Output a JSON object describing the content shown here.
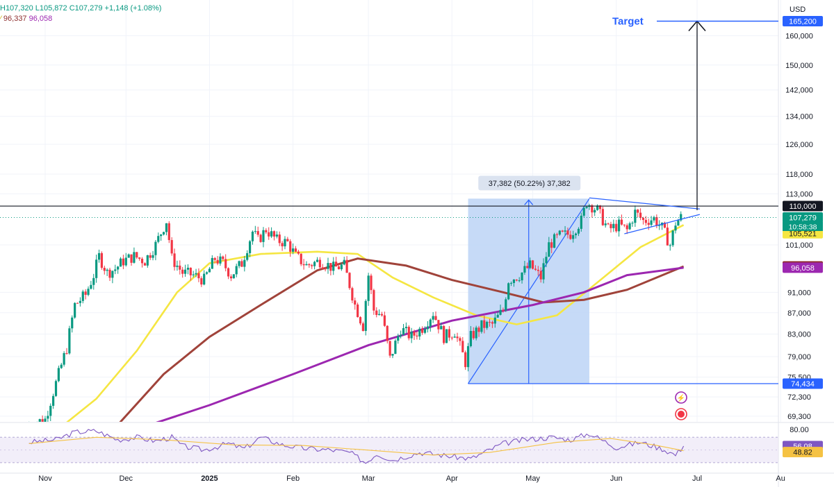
{
  "legend": {
    "ohlc_high": "H107,320",
    "ohlc_low": "L105,872",
    "ohlc_close": "C107,279",
    "ohlc_change": "+1,148 (+1.08%)",
    "ma_row_a": "96,337",
    "ma_row_b": "96,058"
  },
  "currency_label": "USD",
  "colors": {
    "bull": "#089981",
    "bear": "#f23645",
    "sma50": "#f5e642",
    "sma200": "#9c27b0",
    "ema": "#a0433a",
    "measure_fill": "#bcd4f6",
    "trendline": "#2962ff",
    "rsi_line": "#7e57c2",
    "rsi_ma": "#f5c243",
    "rsi_band": "#ede7f6"
  },
  "annotations": {
    "target_label": "Target",
    "measure_label": "37,382 (50.22%) 37,382"
  },
  "price_labels": [
    {
      "value": 165200,
      "text": "165,200",
      "bg": "#2962ff",
      "fg": "#ffffff"
    },
    {
      "value": 110000,
      "text": "110,000",
      "bg": "#131722",
      "fg": "#ffffff"
    },
    {
      "value": 107279,
      "text": "107,279",
      "bg": "#089981",
      "fg": "#ffffff"
    },
    {
      "value": 105521,
      "text": "105,521",
      "bg": "#f5e642",
      "fg": "#131722"
    },
    {
      "value": 96337,
      "text": "96,337",
      "bg": "#8d2d2d",
      "fg": "#ffffff"
    },
    {
      "value": 96058,
      "text": "96,058",
      "bg": "#9c27b0",
      "fg": "#ffffff"
    },
    {
      "value": 74434,
      "text": "74,434",
      "bg": "#2962ff",
      "fg": "#ffffff"
    }
  ],
  "countdown": "10:58:38",
  "rsi_labels": [
    {
      "text": "56.08",
      "bg": "#7e57c2",
      "fg": "#ffffff"
    },
    {
      "text": "48.82",
      "bg": "#f5c243",
      "fg": "#131722"
    }
  ],
  "chart_data": {
    "type": "candlestick",
    "title": "",
    "currency": "USD",
    "y_axis": {
      "scale": "log",
      "range": [
        68000,
        168000
      ],
      "ticks": [
        160000,
        150000,
        142000,
        134000,
        126000,
        118000,
        113000,
        101000,
        91000,
        87000,
        83000,
        79000,
        75500,
        72300,
        69300
      ],
      "tick_labels": [
        "160,000",
        "150,000",
        "142,000",
        "134,000",
        "126,000",
        "118,000",
        "113,000",
        "101,000",
        "91,000",
        "87,000",
        "83,000",
        "79,000",
        "75,500",
        "72,300",
        "69,300"
      ]
    },
    "x_axis": {
      "labels": [
        "Nov",
        "Dec",
        "2025",
        "Feb",
        "Mar",
        "Apr",
        "May",
        "Jun",
        "Jul",
        "Au"
      ],
      "dates": [
        "2024-11-01",
        "2024-12-01",
        "2025-01-01",
        "2025-02-01",
        "2025-03-01",
        "2025-04-01",
        "2025-05-01",
        "2025-06-01",
        "2025-07-01",
        "2025-08-01"
      ]
    },
    "last_candle": {
      "high": 107320,
      "low": 105872,
      "close": 107279,
      "change": 1148,
      "change_pct": 1.08
    },
    "close_series": [
      {
        "d": "2024-10-26",
        "c": 67900
      },
      {
        "d": "2024-11-02",
        "c": 68800
      },
      {
        "d": "2024-11-06",
        "c": 74500
      },
      {
        "d": "2024-11-10",
        "c": 80500
      },
      {
        "d": "2024-11-13",
        "c": 88500
      },
      {
        "d": "2024-11-17",
        "c": 90500
      },
      {
        "d": "2024-11-20",
        "c": 94500
      },
      {
        "d": "2024-11-22",
        "c": 98500
      },
      {
        "d": "2024-11-25",
        "c": 95000
      },
      {
        "d": "2024-11-28",
        "c": 95800
      },
      {
        "d": "2024-12-01",
        "c": 97500
      },
      {
        "d": "2024-12-05",
        "c": 98500
      },
      {
        "d": "2024-12-09",
        "c": 97500
      },
      {
        "d": "2024-12-13",
        "c": 101000
      },
      {
        "d": "2024-12-17",
        "c": 106500
      },
      {
        "d": "2024-12-19",
        "c": 98000
      },
      {
        "d": "2024-12-23",
        "c": 95000
      },
      {
        "d": "2024-12-27",
        "c": 94500
      },
      {
        "d": "2024-12-31",
        "c": 93500
      },
      {
        "d": "2025-01-04",
        "c": 98000
      },
      {
        "d": "2025-01-07",
        "c": 97000
      },
      {
        "d": "2025-01-10",
        "c": 94500
      },
      {
        "d": "2025-01-14",
        "c": 97000
      },
      {
        "d": "2025-01-18",
        "c": 104000
      },
      {
        "d": "2025-01-20",
        "c": 102000
      },
      {
        "d": "2025-01-23",
        "c": 104500
      },
      {
        "d": "2025-01-27",
        "c": 102000
      },
      {
        "d": "2025-01-31",
        "c": 101500
      },
      {
        "d": "2025-02-03",
        "c": 98500
      },
      {
        "d": "2025-02-07",
        "c": 96500
      },
      {
        "d": "2025-02-12",
        "c": 97500
      },
      {
        "d": "2025-02-17",
        "c": 96000
      },
      {
        "d": "2025-02-21",
        "c": 96500
      },
      {
        "d": "2025-02-25",
        "c": 88500
      },
      {
        "d": "2025-02-28",
        "c": 84500
      },
      {
        "d": "2025-03-02",
        "c": 94500
      },
      {
        "d": "2025-03-04",
        "c": 87500
      },
      {
        "d": "2025-03-07",
        "c": 86500
      },
      {
        "d": "2025-03-10",
        "c": 78600
      },
      {
        "d": "2025-03-14",
        "c": 84000
      },
      {
        "d": "2025-03-18",
        "c": 82500
      },
      {
        "d": "2025-03-22",
        "c": 84200
      },
      {
        "d": "2025-03-26",
        "c": 87000
      },
      {
        "d": "2025-03-30",
        "c": 82500
      },
      {
        "d": "2025-04-03",
        "c": 83500
      },
      {
        "d": "2025-04-07",
        "c": 78000
      },
      {
        "d": "2025-04-09",
        "c": 82500
      },
      {
        "d": "2025-04-13",
        "c": 84500
      },
      {
        "d": "2025-04-17",
        "c": 84800
      },
      {
        "d": "2025-04-21",
        "c": 87500
      },
      {
        "d": "2025-04-23",
        "c": 93500
      },
      {
        "d": "2025-04-27",
        "c": 94500
      },
      {
        "d": "2025-05-01",
        "c": 96500
      },
      {
        "d": "2025-05-05",
        "c": 94000
      },
      {
        "d": "2025-05-08",
        "c": 101000
      },
      {
        "d": "2025-05-12",
        "c": 103000
      },
      {
        "d": "2025-05-16",
        "c": 103500
      },
      {
        "d": "2025-05-20",
        "c": 106500
      },
      {
        "d": "2025-05-22",
        "c": 111000
      },
      {
        "d": "2025-05-26",
        "c": 109000
      },
      {
        "d": "2025-05-30",
        "c": 104500
      },
      {
        "d": "2025-06-03",
        "c": 105500
      },
      {
        "d": "2025-06-06",
        "c": 104300
      },
      {
        "d": "2025-06-09",
        "c": 108500
      },
      {
        "d": "2025-06-12",
        "c": 106500
      },
      {
        "d": "2025-06-16",
        "c": 107000
      },
      {
        "d": "2025-06-19",
        "c": 104800
      },
      {
        "d": "2025-06-22",
        "c": 101000
      },
      {
        "d": "2025-06-24",
        "c": 106000
      },
      {
        "d": "2025-06-26",
        "c": 107279
      }
    ],
    "sma50_series": [
      {
        "d": "2024-11-08",
        "v": 68000
      },
      {
        "d": "2024-11-20",
        "v": 72000
      },
      {
        "d": "2024-12-05",
        "v": 80000
      },
      {
        "d": "2024-12-20",
        "v": 91000
      },
      {
        "d": "2025-01-01",
        "v": 97000
      },
      {
        "d": "2025-01-20",
        "v": 99000
      },
      {
        "d": "2025-02-10",
        "v": 99500
      },
      {
        "d": "2025-02-25",
        "v": 99000
      },
      {
        "d": "2025-03-10",
        "v": 94000
      },
      {
        "d": "2025-03-25",
        "v": 90000
      },
      {
        "d": "2025-04-10",
        "v": 86500
      },
      {
        "d": "2025-04-25",
        "v": 84800
      },
      {
        "d": "2025-05-10",
        "v": 86500
      },
      {
        "d": "2025-05-25",
        "v": 93000
      },
      {
        "d": "2025-06-10",
        "v": 100500
      },
      {
        "d": "2025-06-26",
        "v": 105521
      }
    ],
    "ema_series": [
      {
        "d": "2024-11-28",
        "v": 68000
      },
      {
        "d": "2024-12-15",
        "v": 76000
      },
      {
        "d": "2025-01-01",
        "v": 82500
      },
      {
        "d": "2025-01-20",
        "v": 88500
      },
      {
        "d": "2025-02-10",
        "v": 95500
      },
      {
        "d": "2025-02-25",
        "v": 98000
      },
      {
        "d": "2025-03-15",
        "v": 96500
      },
      {
        "d": "2025-04-01",
        "v": 93500
      },
      {
        "d": "2025-04-20",
        "v": 91000
      },
      {
        "d": "2025-05-05",
        "v": 89000
      },
      {
        "d": "2025-05-20",
        "v": 89500
      },
      {
        "d": "2025-06-05",
        "v": 91500
      },
      {
        "d": "2025-06-26",
        "v": 96337
      }
    ],
    "sma200_series": [
      {
        "d": "2024-12-10",
        "v": 68000
      },
      {
        "d": "2025-01-01",
        "v": 71000
      },
      {
        "d": "2025-02-01",
        "v": 76000
      },
      {
        "d": "2025-03-01",
        "v": 81000
      },
      {
        "d": "2025-04-01",
        "v": 85500
      },
      {
        "d": "2025-05-01",
        "v": 88500
      },
      {
        "d": "2025-05-20",
        "v": 91000
      },
      {
        "d": "2025-06-05",
        "v": 94500
      },
      {
        "d": "2025-06-26",
        "v": 96058
      }
    ],
    "horizontal_lines": [
      110000
    ],
    "measure": {
      "from": {
        "d": "2025-04-07",
        "v": 74434
      },
      "to": {
        "d": "2025-05-22",
        "v": 111816
      },
      "change": 37382,
      "change_pct": 50.22
    },
    "triangle": {
      "upper": [
        {
          "d": "2025-05-22",
          "v": 112000
        },
        {
          "d": "2025-07-02",
          "v": 109300
        }
      ],
      "lower": [
        {
          "d": "2025-06-04",
          "v": 103500
        },
        {
          "d": "2025-07-02",
          "v": 108000
        }
      ]
    },
    "target": {
      "value": 165200,
      "from": {
        "d": "2025-07-01",
        "v": 109000
      },
      "label": "Target"
    },
    "rsi": {
      "axis_ticks": [
        80,
        60.0,
        50.0,
        40.0
      ],
      "axis_labels": [
        "80.00"
      ],
      "value": 56.08,
      "ma": 48.82,
      "series": [
        {
          "d": "2024-10-26",
          "v": 62
        },
        {
          "d": "2024-11-05",
          "v": 66
        },
        {
          "d": "2024-11-12",
          "v": 78
        },
        {
          "d": "2024-11-20",
          "v": 80
        },
        {
          "d": "2024-11-28",
          "v": 66
        },
        {
          "d": "2024-12-05",
          "v": 70
        },
        {
          "d": "2024-12-12",
          "v": 64
        },
        {
          "d": "2024-12-18",
          "v": 70
        },
        {
          "d": "2024-12-22",
          "v": 56
        },
        {
          "d": "2024-12-30",
          "v": 50
        },
        {
          "d": "2025-01-08",
          "v": 60
        },
        {
          "d": "2025-01-14",
          "v": 52
        },
        {
          "d": "2025-01-20",
          "v": 70
        },
        {
          "d": "2025-01-28",
          "v": 58
        },
        {
          "d": "2025-02-06",
          "v": 52
        },
        {
          "d": "2025-02-15",
          "v": 50
        },
        {
          "d": "2025-02-22",
          "v": 46
        },
        {
          "d": "2025-02-28",
          "v": 30
        },
        {
          "d": "2025-03-04",
          "v": 44
        },
        {
          "d": "2025-03-10",
          "v": 34
        },
        {
          "d": "2025-03-20",
          "v": 46
        },
        {
          "d": "2025-03-28",
          "v": 42
        },
        {
          "d": "2025-04-08",
          "v": 36
        },
        {
          "d": "2025-04-20",
          "v": 60
        },
        {
          "d": "2025-04-28",
          "v": 66
        },
        {
          "d": "2025-05-08",
          "v": 70
        },
        {
          "d": "2025-05-15",
          "v": 66
        },
        {
          "d": "2025-05-22",
          "v": 76
        },
        {
          "d": "2025-06-01",
          "v": 54
        },
        {
          "d": "2025-06-10",
          "v": 62
        },
        {
          "d": "2025-06-18",
          "v": 52
        },
        {
          "d": "2025-06-23",
          "v": 42
        },
        {
          "d": "2025-06-26",
          "v": 56.08
        }
      ],
      "ma_series": [
        {
          "d": "2024-10-26",
          "v": 60
        },
        {
          "d": "2024-11-20",
          "v": 70
        },
        {
          "d": "2024-12-15",
          "v": 66
        },
        {
          "d": "2025-01-10",
          "v": 58
        },
        {
          "d": "2025-02-05",
          "v": 57
        },
        {
          "d": "2025-02-28",
          "v": 50
        },
        {
          "d": "2025-03-25",
          "v": 42
        },
        {
          "d": "2025-04-15",
          "v": 46
        },
        {
          "d": "2025-05-10",
          "v": 62
        },
        {
          "d": "2025-05-30",
          "v": 68
        },
        {
          "d": "2025-06-15",
          "v": 58
        },
        {
          "d": "2025-06-26",
          "v": 48.82
        }
      ]
    }
  }
}
